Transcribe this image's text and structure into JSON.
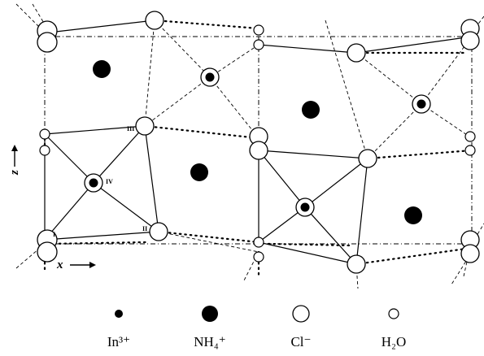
{
  "diagram": {
    "site_labels": [
      "I",
      "II",
      "III",
      "IV"
    ],
    "axis_labels": {
      "horizontal": "x",
      "vertical": "z"
    },
    "legend": [
      {
        "symbol": "small-filled-dot",
        "label": "In³⁺"
      },
      {
        "symbol": "large-filled-dot",
        "label": "NH₄⁺"
      },
      {
        "symbol": "large-open-circle",
        "label": "Cl⁻"
      },
      {
        "symbol": "small-open-circle",
        "label": "H₂O"
      }
    ]
  }
}
